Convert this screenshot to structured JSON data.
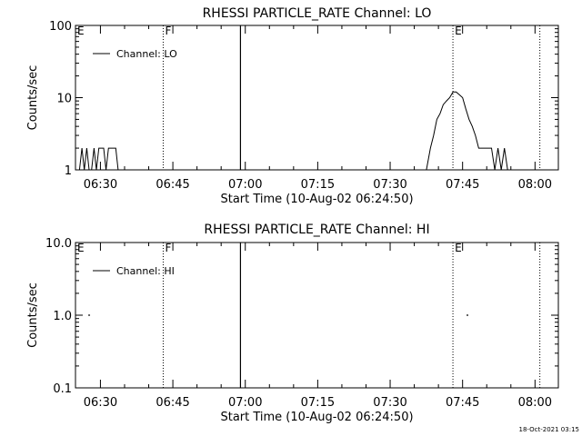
{
  "footer_timestamp": "18-Oct-2021 03:15",
  "time_axis_labels": [
    "06:30",
    "06:45",
    "07:00",
    "07:15",
    "07:30",
    "07:45",
    "08:00"
  ],
  "chart_data": [
    {
      "type": "line",
      "title": "RHESSI PARTICLE_RATE Channel: LO",
      "xlabel": "Start Time (10-Aug-02 06:24:50)",
      "ylabel": "Counts/sec",
      "yscale": "log",
      "ylim": [
        1,
        100
      ],
      "xlim": [
        "06:24:50",
        "08:04:50"
      ],
      "y_tick_labels": [
        "1",
        "10",
        "100"
      ],
      "legend": {
        "entries": [
          "Channel: LO"
        ],
        "placement": "top-left"
      },
      "markers": [
        {
          "label": "E",
          "time": "06:24:50",
          "style": "none"
        },
        {
          "label": "F",
          "time": "06:43:00",
          "style": "dotted"
        },
        {
          "label": "",
          "time": "06:59:00",
          "style": "solid"
        },
        {
          "label": "E",
          "time": "07:43:00",
          "style": "dotted"
        },
        {
          "label": "",
          "time": "08:01:00",
          "style": "dotted"
        }
      ],
      "series": [
        {
          "name": "Channel: LO",
          "x": [
            "06:24:50",
            "06:25:40",
            "06:26:10",
            "06:26:40",
            "06:27:10",
            "06:27:40",
            "06:28:10",
            "06:28:40",
            "06:29:10",
            "06:29:40",
            "06:30:10",
            "06:30:40",
            "06:31:10",
            "06:31:40",
            "06:32:10",
            "06:32:40",
            "06:33:10",
            "06:33:40",
            "07:37:30",
            "07:38:20",
            "07:39:00",
            "07:39:40",
            "07:40:20",
            "07:41:00",
            "07:41:40",
            "07:42:20",
            "07:43:00",
            "07:43:40",
            "07:44:20",
            "07:45:00",
            "07:45:40",
            "07:46:20",
            "07:47:00",
            "07:47:40",
            "07:48:20",
            "07:49:00",
            "07:49:40",
            "07:50:20",
            "07:51:00",
            "07:51:40",
            "07:52:20",
            "07:53:00",
            "07:53:40",
            "07:54:20",
            "07:55:00"
          ],
          "y": [
            1,
            1,
            2,
            1,
            2,
            1,
            1,
            2,
            1,
            2,
            2,
            2,
            1,
            2,
            2,
            2,
            2,
            1,
            1,
            2,
            3,
            5,
            6,
            8,
            9,
            10,
            12,
            12,
            11,
            10,
            7,
            5,
            4,
            3,
            2,
            2,
            2,
            2,
            2,
            1,
            2,
            1,
            2,
            1,
            1
          ]
        }
      ]
    },
    {
      "type": "line",
      "title": "RHESSI PARTICLE_RATE Channel: HI",
      "xlabel": "Start Time (10-Aug-02 06:24:50)",
      "ylabel": "Counts/sec",
      "yscale": "log",
      "ylim": [
        0.1,
        10
      ],
      "xlim": [
        "06:24:50",
        "08:04:50"
      ],
      "y_tick_labels": [
        "0.1",
        "1.0",
        "10.0"
      ],
      "legend": {
        "entries": [
          "Channel: HI"
        ],
        "placement": "top-left"
      },
      "markers": [
        {
          "label": "E",
          "time": "06:24:50",
          "style": "none"
        },
        {
          "label": "F",
          "time": "06:43:00",
          "style": "dotted"
        },
        {
          "label": "",
          "time": "06:59:00",
          "style": "solid"
        },
        {
          "label": "E",
          "time": "07:43:00",
          "style": "dotted"
        },
        {
          "label": "",
          "time": "08:01:00",
          "style": "dotted"
        }
      ],
      "series": [
        {
          "name": "Channel: HI",
          "x": [
            "06:27:40",
            "07:46:00"
          ],
          "y": [
            1,
            1
          ]
        }
      ]
    }
  ]
}
